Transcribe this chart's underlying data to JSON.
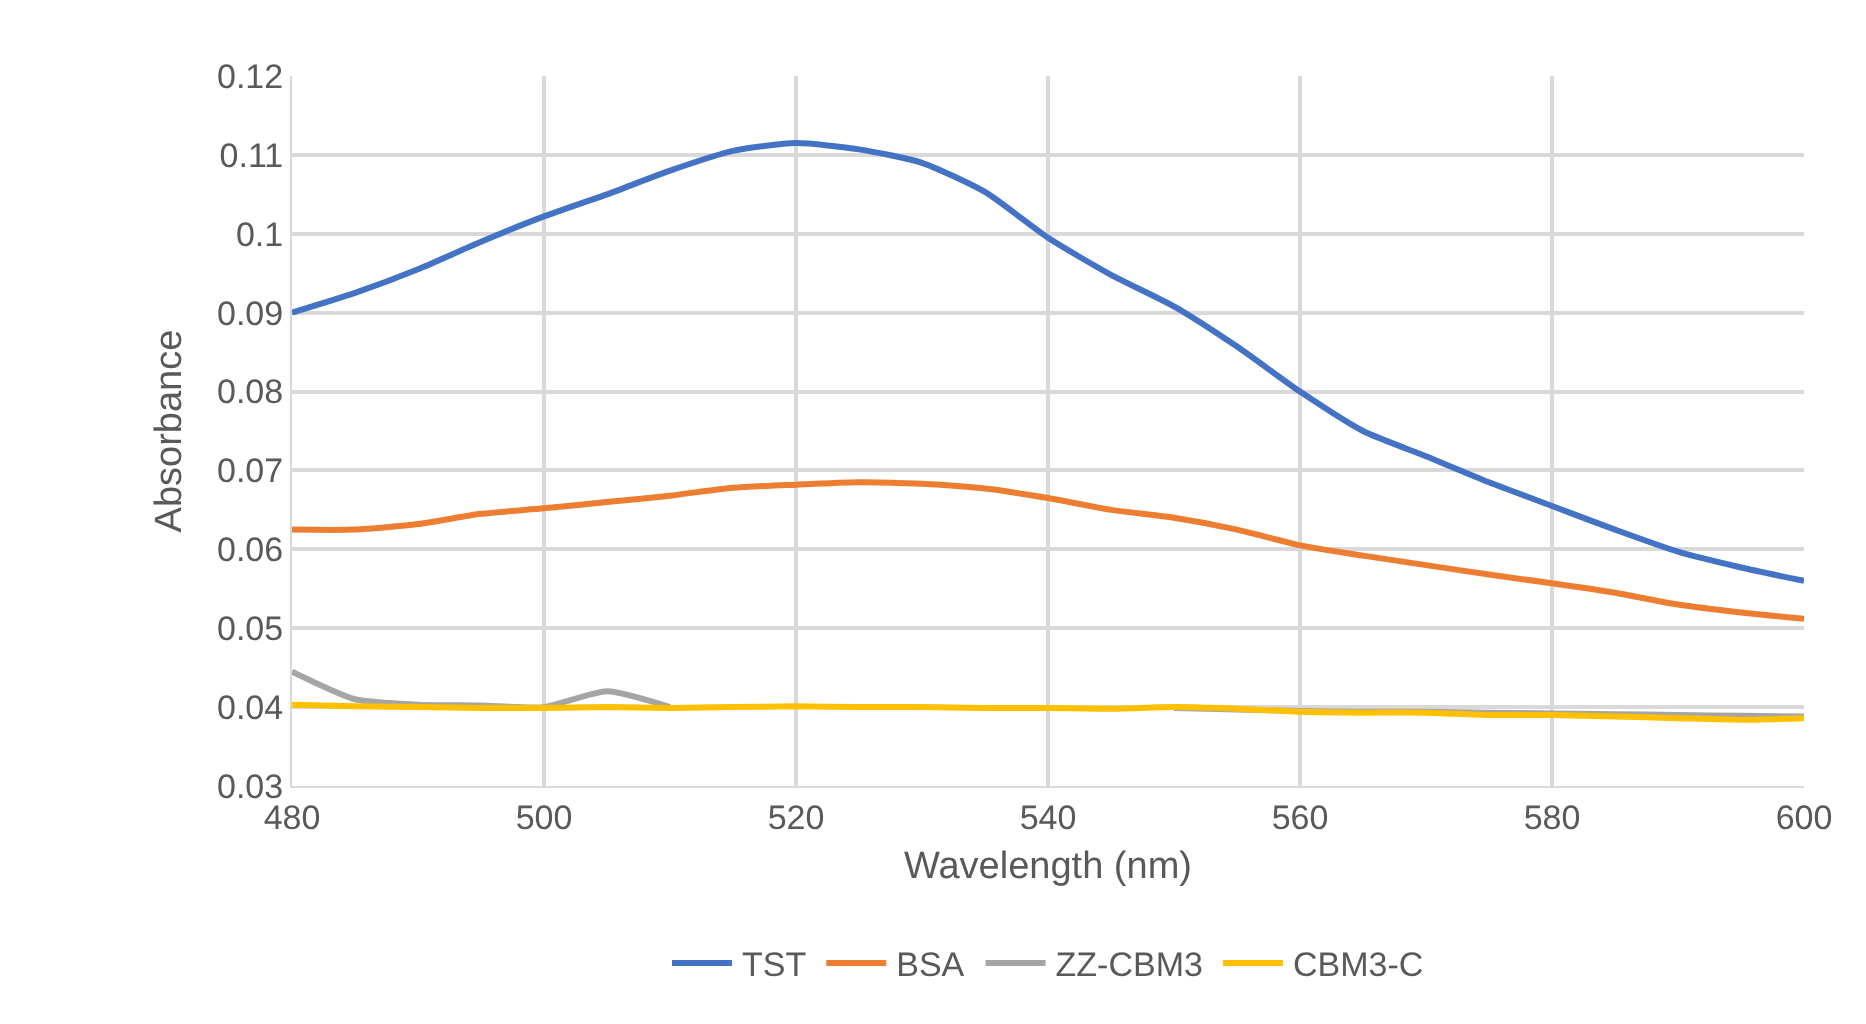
{
  "chart_data": {
    "type": "line",
    "xlabel": "Wavelength (nm)",
    "ylabel": "Absorbance",
    "x": [
      480,
      485,
      490,
      495,
      500,
      505,
      510,
      515,
      520,
      525,
      530,
      535,
      540,
      545,
      550,
      555,
      560,
      565,
      570,
      575,
      580,
      585,
      590,
      595,
      600
    ],
    "xlim": [
      480,
      600
    ],
    "xticks": [
      480,
      500,
      520,
      540,
      560,
      580,
      600
    ],
    "ylim": [
      0.03,
      0.12
    ],
    "yticks": [
      0.03,
      0.04,
      0.05,
      0.06,
      0.07,
      0.08,
      0.09,
      0.1,
      0.11,
      0.12
    ],
    "grid": true,
    "legend": "bottom",
    "marker": "none",
    "line_style": "solid",
    "series": [
      {
        "name": "TST",
        "color": "#4472c4",
        "values": [
          0.09,
          0.0925,
          0.0955,
          0.099,
          0.1022,
          0.105,
          0.108,
          0.1105,
          0.1115,
          0.1107,
          0.109,
          0.1053,
          0.0995,
          0.0948,
          0.0908,
          0.0857,
          0.08,
          0.075,
          0.0718,
          0.0685,
          0.0655,
          0.0625,
          0.0597,
          0.0577,
          0.056
        ]
      },
      {
        "name": "BSA",
        "color": "#ed7d31",
        "values": [
          0.0625,
          0.0625,
          0.0632,
          0.0645,
          0.0652,
          0.066,
          0.0668,
          0.0678,
          0.0682,
          0.0685,
          0.0683,
          0.0677,
          0.0665,
          0.065,
          0.064,
          0.0625,
          0.0605,
          0.0592,
          0.058,
          0.0568,
          0.0557,
          0.0545,
          0.053,
          0.052,
          0.0512
        ]
      },
      {
        "name": "ZZ-CBM3",
        "color": "#a5a5a5",
        "values": [
          0.0445,
          0.041,
          0.0403,
          0.0402,
          0.04,
          0.042,
          0.04,
          null,
          null,
          null,
          null,
          null,
          null,
          null,
          0.0399,
          0.0397,
          0.0395,
          0.0394,
          0.0394,
          0.0393,
          0.0392,
          0.0391,
          0.039,
          0.0389,
          0.0388
        ]
      },
      {
        "name": "CBM3-C",
        "color": "#ffc000",
        "values": [
          0.0403,
          0.0401,
          0.04,
          0.0399,
          0.0399,
          0.04,
          0.0399,
          0.04,
          0.0401,
          0.04,
          0.04,
          0.0399,
          0.0399,
          0.0398,
          0.04,
          0.0398,
          0.0394,
          0.0393,
          0.0393,
          0.039,
          0.039,
          0.0388,
          0.0386,
          0.0384,
          0.0386
        ]
      }
    ]
  }
}
